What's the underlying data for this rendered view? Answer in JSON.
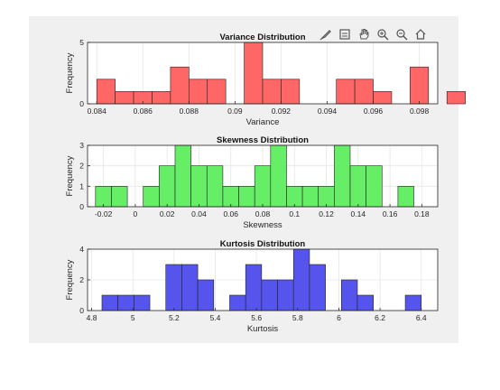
{
  "toolbar": {
    "icons": [
      "brush-icon",
      "data-tip-icon",
      "pan-icon",
      "zoom-in-icon",
      "zoom-out-icon",
      "home-icon"
    ]
  },
  "chart_data": [
    {
      "type": "bar",
      "title": "Variance Distribution",
      "xlabel": "Variance",
      "ylabel": "Frequency",
      "color": "#ff6666",
      "xlim": [
        0.0836,
        0.0988
      ],
      "ylim": [
        0,
        5
      ],
      "xticks": [
        "0.084",
        "0.086",
        "0.088",
        "0.09",
        "0.092",
        "0.094",
        "0.096",
        "0.098"
      ],
      "xtick_values": [
        0.084,
        0.086,
        0.088,
        0.09,
        0.092,
        0.094,
        0.096,
        0.098
      ],
      "yticks": [
        0,
        5
      ],
      "bin_start": 0.084,
      "bin_width": 0.0008,
      "counts": [
        2,
        1,
        1,
        1,
        3,
        2,
        2,
        0,
        5,
        2,
        2,
        0,
        0,
        2,
        2,
        1,
        0,
        3,
        0,
        1
      ]
    },
    {
      "type": "bar",
      "title": "Skewness Distribution",
      "xlabel": "Skewness",
      "ylabel": "Frequency",
      "color": "#66ee66",
      "xlim": [
        -0.03,
        0.19
      ],
      "ylim": [
        0,
        3
      ],
      "xticks": [
        "-0.02",
        "0",
        "0.02",
        "0.04",
        "0.06",
        "0.08",
        "0.1",
        "0.12",
        "0.14",
        "0.16",
        "0.18"
      ],
      "xtick_values": [
        -0.02,
        0,
        0.02,
        0.04,
        0.06,
        0.08,
        0.1,
        0.12,
        0.14,
        0.16,
        0.18
      ],
      "yticks": [
        0,
        1,
        2,
        3
      ],
      "bin_start": -0.025,
      "bin_width": 0.01,
      "counts": [
        1,
        1,
        0,
        1,
        2,
        3,
        2,
        2,
        1,
        1,
        2,
        3,
        1,
        1,
        1,
        3,
        2,
        2,
        0,
        1
      ]
    },
    {
      "type": "bar",
      "title": "Kurtosis Distribution",
      "xlabel": "Kurtosis",
      "ylabel": "Frequency",
      "color": "#5555ee",
      "xlim": [
        4.78,
        6.48
      ],
      "ylim": [
        0,
        4
      ],
      "xticks": [
        "4.8",
        "5",
        "5.2",
        "5.4",
        "5.6",
        "5.8",
        "6",
        "6.2",
        "6.4"
      ],
      "xtick_values": [
        4.8,
        5,
        5.2,
        5.4,
        5.6,
        5.8,
        6,
        6.2,
        6.4
      ],
      "yticks": [
        0,
        2,
        4
      ],
      "bin_start": 4.85,
      "bin_width": 0.0775,
      "counts": [
        1,
        1,
        1,
        0,
        3,
        3,
        2,
        0,
        1,
        3,
        2,
        2,
        4,
        3,
        0,
        2,
        1,
        0,
        0,
        1
      ]
    }
  ]
}
